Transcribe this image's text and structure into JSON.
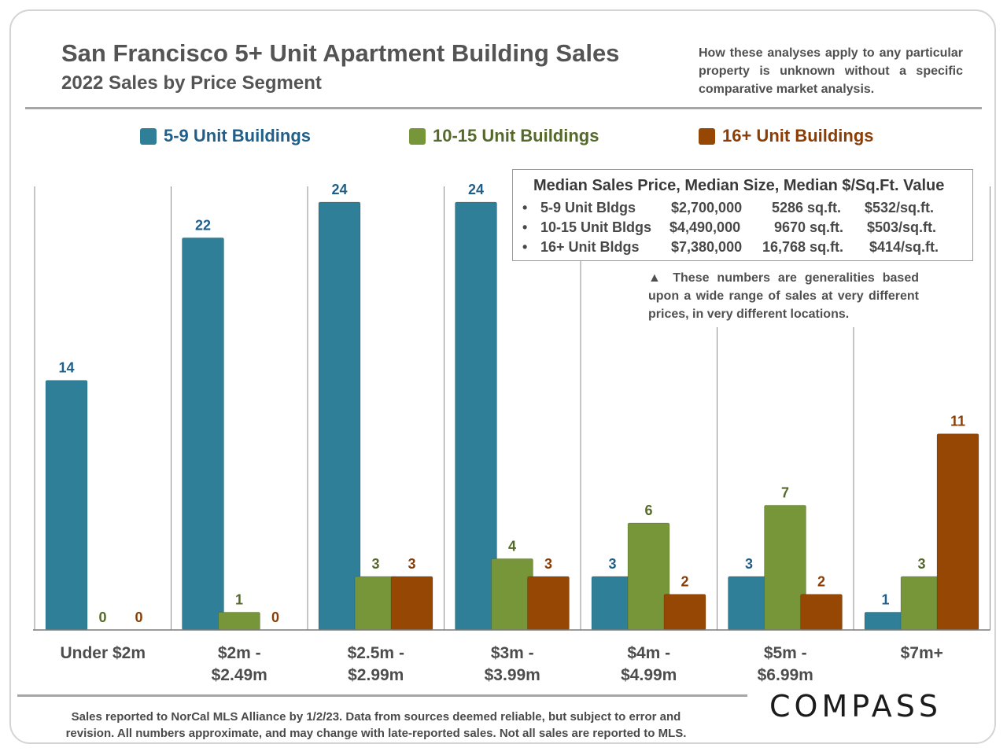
{
  "header": {
    "title": "San Francisco 5+ Unit Apartment Building Sales",
    "subtitle": "2022 Sales by Price Segment",
    "disclaimer": "How these analyses apply to any particular property is unknown without a specific comparative market analysis."
  },
  "colors": {
    "series_5_9": "#2e7f97",
    "series_10_15": "#77963a",
    "series_16_plus": "#964704",
    "label_5_9": "#1f5f8a",
    "label_10_15": "#55692a",
    "label_16_plus": "#8a3e05"
  },
  "median_box": {
    "title": "Median Sales Price, Median Size, Median $/Sq.Ft. Value",
    "rows": [
      {
        "bullet": "•",
        "label": "5-9 Unit Bldgs",
        "price": "$2,700,000",
        "size": "5286 sq.ft.",
        "ppsf": "$532/sq.ft."
      },
      {
        "bullet": "•",
        "label": "10-15 Unit Bldgs",
        "price": "$4,490,000",
        "size": "9670 sq.ft.",
        "ppsf": "$503/sq.ft."
      },
      {
        "bullet": "•",
        "label": "16+ Unit Bldgs",
        "price": "$7,380,000",
        "size": "16,768 sq.ft.",
        "ppsf": "$414/sq.ft."
      }
    ]
  },
  "note": "▲ These numbers are generalities based upon a wide range of sales at very different prices, in very different locations.",
  "footnote": {
    "line1": "Sales reported to NorCal MLS Alliance by 1/2/23. Data from sources deemed reliable, but subject to error and",
    "line2": "revision. All numbers approximate, and may change with late-reported sales. Not all sales are reported to MLS."
  },
  "logo": "COMPASS",
  "chart_data": {
    "type": "bar",
    "title": "San Francisco 5+ Unit Apartment Building Sales",
    "subtitle": "2022 Sales by Price Segment",
    "xlabel": "",
    "ylabel": "",
    "ylim": [
      0,
      24
    ],
    "legend_position": "top",
    "grid": false,
    "categories": [
      [
        "Under $2m"
      ],
      [
        "$2m -",
        "$2.49m"
      ],
      [
        "$2.5m -",
        "$2.99m"
      ],
      [
        "$3m -",
        "$3.99m"
      ],
      [
        "$4m -",
        "$4.99m"
      ],
      [
        "$5m -",
        "$6.99m"
      ],
      [
        "$7m+"
      ]
    ],
    "series": [
      {
        "name": "5-9 Unit Buildings",
        "values": [
          14,
          22,
          24,
          24,
          3,
          3,
          1
        ]
      },
      {
        "name": "10-15 Unit Buildings",
        "values": [
          0,
          1,
          3,
          4,
          6,
          7,
          3
        ]
      },
      {
        "name": "16+ Unit Buildings",
        "values": [
          0,
          0,
          3,
          3,
          2,
          2,
          11
        ]
      }
    ]
  }
}
